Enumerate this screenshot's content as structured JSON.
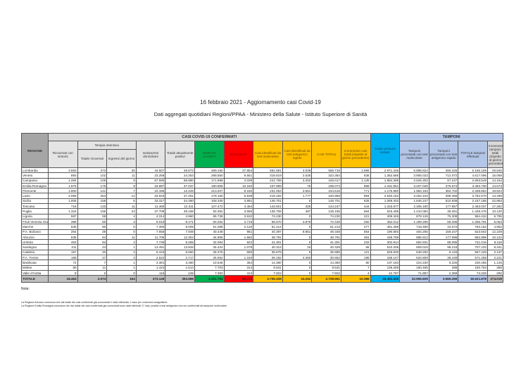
{
  "title": "16 febbraio 2021 - Aggiornamento casi Covid-19",
  "subtitle": "Dati aggregati quotidiani Regioni/PPAA - Ministero della Salute - Istituto Superiore di Sanità",
  "colors": {
    "dimessi": "#00b050",
    "deceduti": "#ff0000",
    "casi": "#ffc000",
    "persone": "#00b0f0",
    "tamponi": "#b4c6e7"
  },
  "header": {
    "region": "REGIONE",
    "casi_band": "CASI COVID-19 CONFERMATI",
    "tamponi_band": "TAMPONI",
    "terapia_intensiva": "Terapia intensiva",
    "columns": [
      "Ricoverati con sintomi",
      "Totale ricoverati",
      "Ingressi del giorno",
      "Isolamento domiciliare",
      "Totale attualmente positivi",
      "DIMESSI GUARITI",
      "DECEDUTI",
      "Casi identificati da test molecolare",
      "Casi identificati da test antigenico rapido",
      "CASI TOTALI",
      "Incremento casi totali (rispetto al giorno precedente)",
      "Totale persone testate",
      "Tamponi processati con test molecolare",
      "Tamponi processati con test antigenico rapido",
      "TOTALE tamponi effettuati",
      "Incremento tamponi totali (rispetto al giorno precedente)"
    ]
  },
  "rows": [
    [
      "Lombardia",
      "3.693",
      "373",
      "30",
      "44.607",
      "48.673",
      "489.192",
      "27.854",
      "561.691",
      "4.028",
      "565.719",
      "1.696",
      "2.971.445",
      "5.888.824",
      "266.345",
      "6.155.169",
      "29.846"
    ],
    [
      "Veneto",
      "893",
      "102",
      "11",
      "23.258",
      "24.253",
      "288.550",
      "9.551",
      "319.819",
      "2.535",
      "322.354",
      "638",
      "1.362.585",
      "3.905.023",
      "712.072",
      "4.617.095",
      "15.069"
    ],
    [
      "Campania",
      "1.284",
      "106",
      "9",
      "67.590",
      "68.980",
      "171.998",
      "4.039",
      "241.765",
      "3.252",
      "245.017",
      "1.135",
      "1.884.395",
      "2.626.302",
      "67.247",
      "2.693.549",
      "14.154"
    ],
    [
      "Emilia-Romagna",
      "1.975",
      "175",
      "9",
      "34.887",
      "37.037",
      "190.855",
      "10.182",
      "237.999",
      "75",
      "238.074",
      "968",
      "1.431.651",
      "3.207.026",
      "276.674",
      "3.483.700",
      "14.673"
    ],
    [
      "Piemonte",
      "1.900",
      "141",
      "7",
      "10.185",
      "12.226",
      "213.207",
      "9.182",
      "231.054",
      "3.561",
      "234.615",
      "771",
      "1.176.960",
      "1.984.152",
      "354.702",
      "2.338.854",
      "18.824"
    ],
    [
      "Lazio",
      "2.065",
      "253",
      "12",
      "34.943",
      "37.261",
      "178.160",
      "5.538",
      "219.182",
      "1.777",
      "220.959",
      "894",
      "2.640.182",
      "3.254.104",
      "498.466",
      "3.752.570",
      "13.499"
    ],
    [
      "Sicilia",
      "1.005",
      "158",
      "5",
      "33.317",
      "34.480",
      "108.330",
      "3.891",
      "146.701",
      "0",
      "146.701",
      "625",
      "1.069.402",
      "1.646.247",
      "510.939",
      "2.157.186",
      "22.863"
    ],
    [
      "Toscana",
      "718",
      "133",
      "11",
      "11.460",
      "12.311",
      "127.472",
      "4.464",
      "143.921",
      "326",
      "144.247",
      "444",
      "1.315.677",
      "2.305.180",
      "177.857",
      "2.483.037",
      "17.282"
    ],
    [
      "Puglia",
      "1.324",
      "156",
      "24",
      "37.708",
      "39.188",
      "93.352",
      "3.655",
      "135.708",
      "487",
      "136.195",
      "694",
      "815.496",
      "1.410.084",
      "38.391",
      "1.448.475",
      "10.120"
    ],
    [
      "Liguria",
      "587",
      "59",
      "4",
      "4.314",
      "4.960",
      "65.738",
      "3.532",
      "74.230",
      "0",
      "74.230",
      "221",
      "409.345",
      "879.126",
      "75.308",
      "954.434",
      "6.795"
    ],
    [
      "Friuli Venezia Giulia",
      "396",
      "60",
      "3",
      "9.015",
      "9.471",
      "60.262",
      "2.715",
      "68.570",
      "3.878",
      "72.448",
      "260",
      "452.012",
      "1.189.295",
      "66.496",
      "1.255.791",
      "8.053"
    ],
    [
      "Marche",
      "535",
      "80",
      "6",
      "7.390",
      "8.005",
      "51.088",
      "2.120",
      "61.213",
      "0",
      "61.213",
      "277",
      "461.288",
      "718.480",
      "44.672",
      "763.152",
      "4.952"
    ],
    [
      "P.A. Bolzano",
      "254",
      "39",
      "0",
      "7.656",
      "7.949",
      "40.448",
      "951",
      "40.397",
      "8.951",
      "49.348",
      "564",
      "190.893",
      "464.255",
      "159.247",
      "623.502",
      "12.229"
    ],
    [
      "Abruzzo",
      "535",
      "64",
      "11",
      "11.705",
      "12.304",
      "34.905",
      "1.582",
      "48.791",
      "0",
      "48.791",
      "491",
      "448.769",
      "685.912",
      "177.086",
      "862.998",
      "10.122"
    ],
    [
      "Umbria",
      "463",
      "84",
      "4",
      "7.738",
      "8.285",
      "32.094",
      "922",
      "41.301",
      "0",
      "41.301",
      "233",
      "302.914",
      "652.931",
      "88.085",
      "741.016",
      "8.116"
    ],
    [
      "Sardegna",
      "311",
      "24",
      "1",
      "13.491",
      "13.826",
      "25.424",
      "1.079",
      "40.313",
      "16",
      "40.329",
      "66",
      "510.206",
      "609.015",
      "98.218",
      "707.233",
      "8.341"
    ],
    [
      "Calabria",
      "197",
      "20",
      "2",
      "6.443",
      "6.660",
      "28.375",
      "650",
      "35.679",
      "6",
      "35.685",
      "121",
      "526.830",
      "549.292",
      "8.133",
      "557.425",
      "2.137"
    ],
    [
      "P.A. Trento",
      "168",
      "27",
      "3",
      "2.522",
      "2.717",
      "26.652",
      "1.183",
      "26.192",
      "4.360",
      "30.552",
      "195",
      "166.147",
      "534.809",
      "36.449",
      "571.258",
      "2.221"
    ],
    [
      "Basilicata",
      "72",
      "7",
      "1",
      "3.381",
      "3.460",
      "10.546",
      "354",
      "14.360",
      "0",
      "14.360",
      "80",
      "137.183",
      "224.230",
      "6.225",
      "230.455",
      "1.125"
    ],
    [
      "Molise",
      "80",
      "11",
      "1",
      "1.423",
      "1.514",
      "7.703",
      "314",
      "9.531",
      "0",
      "9.531",
      "7",
      "136.259",
      "150.465",
      "288",
      "150.753",
      "358"
    ],
    [
      "Valle d'Aosta",
      "8",
      "2",
      "0",
      "116",
      "126",
      "7.383",
      "413",
      "7.922",
      "0",
      "7.922",
      "4",
      "42.787",
      "71.857",
      "2.369",
      "74.226",
      "292"
    ]
  ],
  "total": [
    "TOTALE",
    "18.463",
    "2.074",
    "154",
    "373.149",
    "393.686",
    "2.251.754",
    "94.171",
    "2.706.339",
    "33.252",
    "2.739.591",
    "10.386",
    "18.452.428",
    "32.956.609",
    "3.665.269",
    "36.621.878",
    "274.019"
  ],
  "notes": {
    "heading": "Note:",
    "lines": [
      "La Regione Abruzzo comunica che dal totale dei casi confermati già comunicati è stato eliminato 1 caso per correzioni anagrafiche.",
      "La Regione Emilia Romagna comunica che dal totale dei casi confermati già comunicati sono stati eliminati 17 casi, positivi a test antigenico ma non confermati da tampone molecolare."
    ]
  }
}
